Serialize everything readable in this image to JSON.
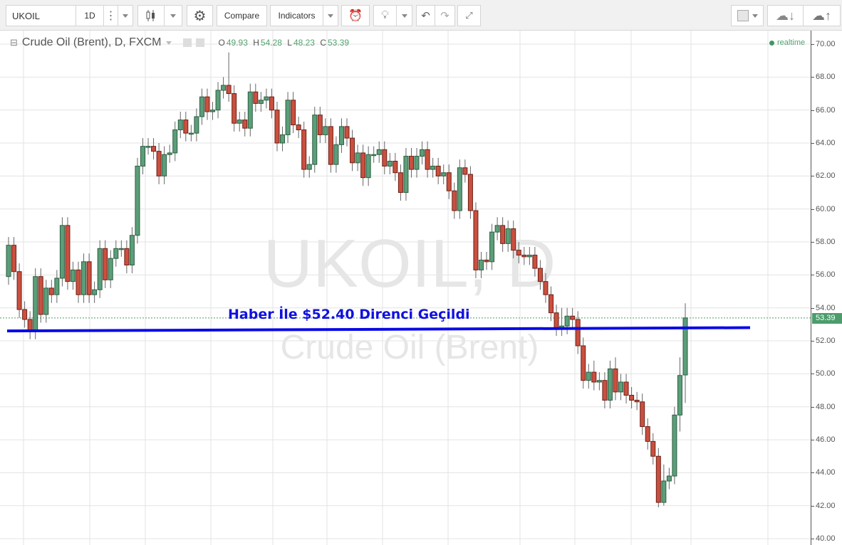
{
  "toolbar": {
    "symbol": "UKOIL",
    "interval": "1D",
    "compare_label": "Compare",
    "indicators_label": "Indicators",
    "icons": [
      "candlestick-icon",
      "gear-icon",
      "alarm-add-icon",
      "lightbulb-icon",
      "undo-icon",
      "redo-icon",
      "fullscreen-icon",
      "color-square-icon",
      "cloud-download-icon",
      "cloud-upload-icon"
    ]
  },
  "legend": {
    "title": "Crude Oil (Brent), D, FXCM",
    "o_label": "O",
    "o": "49.93",
    "h_label": "H",
    "h": "54.28",
    "l_label": "L",
    "l": "48.23",
    "c_label": "C",
    "c": "53.39"
  },
  "status": {
    "realtime": "realtime"
  },
  "watermark": {
    "line1": "UKOIL, D",
    "line2": "Crude Oil (Brent)"
  },
  "annotation": {
    "text": "Haber İle $52.40 Direnci Geçildi",
    "color": "#1010e0",
    "line_level_start": 52.6,
    "line_level_end": 52.8
  },
  "colors": {
    "up": "#5b9e7a",
    "down": "#c9503f",
    "last_price": "#4c9c6c"
  },
  "chart_data": {
    "type": "candlestick",
    "symbol": "UKOIL",
    "interval": "D",
    "ylim": [
      40,
      70.6
    ],
    "yticks": [
      "70.00",
      "68.00",
      "66.00",
      "64.00",
      "62.00",
      "60.00",
      "58.00",
      "56.00",
      "54.00",
      "52.00",
      "50.00",
      "48.00",
      "46.00",
      "44.00",
      "42.00",
      "40.00"
    ],
    "grid": true,
    "last_price": "53.39",
    "open": [
      55.9,
      57.8,
      56.2,
      53.9,
      53.3,
      52.6,
      55.9,
      53.6,
      55.2,
      54.8,
      55.8,
      59.0,
      55.6,
      56.3,
      54.8,
      56.8,
      54.8,
      55.1,
      57.6,
      55.7,
      57.0,
      57.6,
      57.6,
      56.6,
      58.4,
      62.6,
      63.8,
      63.8,
      63.5,
      62.0,
      63.3,
      63.4,
      64.8,
      65.4,
      64.6,
      64.6,
      65.6,
      66.8,
      65.9,
      66.0,
      67.2,
      67.5,
      67.0,
      65.2,
      65.4,
      64.9,
      67.1,
      66.4,
      66.6,
      66.8,
      66.0,
      64.0,
      64.5,
      66.6,
      65.1,
      64.8,
      62.4,
      62.7,
      65.7,
      64.5,
      65.0,
      62.7,
      63.9,
      65.0,
      64.3,
      62.8,
      63.4,
      61.9,
      63.3,
      63.3,
      63.6,
      62.6,
      62.9,
      62.2,
      61.0,
      63.2,
      62.4,
      63.2,
      63.6,
      62.4,
      62.6,
      62.0,
      62.2,
      61.1,
      59.9,
      62.5,
      62.1,
      59.9,
      56.3,
      56.9,
      56.8,
      58.6,
      59.0,
      57.9,
      58.8,
      57.5,
      57.2,
      57.1,
      57.2,
      56.4,
      55.6,
      54.8,
      53.7,
      52.8,
      52.9,
      53.5,
      53.3,
      51.7,
      49.6,
      50.1,
      49.5,
      49.6,
      48.4,
      50.3,
      48.9,
      49.5,
      48.7,
      48.4,
      48.3,
      46.8,
      45.9,
      45.0,
      42.2,
      43.5,
      43.8,
      47.5,
      49.93
    ],
    "high": [
      58.3,
      58.3,
      56.7,
      54.4,
      53.8,
      56.4,
      56.4,
      55.7,
      55.7,
      56.3,
      59.5,
      59.5,
      56.8,
      56.8,
      57.3,
      57.3,
      55.6,
      58.1,
      58.1,
      57.5,
      58.1,
      58.1,
      58.1,
      58.9,
      63.1,
      64.3,
      64.3,
      64.3,
      64.0,
      63.8,
      63.9,
      65.3,
      65.9,
      65.9,
      65.1,
      66.1,
      67.3,
      67.3,
      66.5,
      67.7,
      68.0,
      69.5,
      67.5,
      65.9,
      65.9,
      67.6,
      67.6,
      67.1,
      67.3,
      67.3,
      66.5,
      65.0,
      67.1,
      67.1,
      65.6,
      65.3,
      63.2,
      66.2,
      66.2,
      65.5,
      65.5,
      64.4,
      65.5,
      65.5,
      64.8,
      63.9,
      63.9,
      63.8,
      63.8,
      64.1,
      64.1,
      63.4,
      63.4,
      62.7,
      63.7,
      63.7,
      63.7,
      64.1,
      64.1,
      63.1,
      63.1,
      62.7,
      62.7,
      61.6,
      63.0,
      63.0,
      62.6,
      60.4,
      57.4,
      57.4,
      59.1,
      59.5,
      59.5,
      59.3,
      59.3,
      58.0,
      57.7,
      57.7,
      57.7,
      56.9,
      56.1,
      55.3,
      54.2,
      54.0,
      54.0,
      54.0,
      53.8,
      52.2,
      50.6,
      50.8,
      50.1,
      50.1,
      50.8,
      51.0,
      50.0,
      50.0,
      49.2,
      48.9,
      48.8,
      47.3,
      46.4,
      45.5,
      44.5,
      44.3,
      48.0,
      51.0,
      54.28
    ],
    "low": [
      55.4,
      55.7,
      53.4,
      52.8,
      52.1,
      52.1,
      53.1,
      53.1,
      54.3,
      54.3,
      55.3,
      55.1,
      55.1,
      54.3,
      54.3,
      54.3,
      54.3,
      54.6,
      55.2,
      55.2,
      56.5,
      57.1,
      56.1,
      56.1,
      57.9,
      62.1,
      63.3,
      63.0,
      61.5,
      61.5,
      62.8,
      62.9,
      64.3,
      64.1,
      64.1,
      64.1,
      65.1,
      65.4,
      65.4,
      65.5,
      66.7,
      66.5,
      64.7,
      64.7,
      64.4,
      64.4,
      65.9,
      65.9,
      66.1,
      65.5,
      63.5,
      63.5,
      64.0,
      64.6,
      64.3,
      61.9,
      61.9,
      62.2,
      64.0,
      64.0,
      62.2,
      62.2,
      63.4,
      63.8,
      62.3,
      62.3,
      61.4,
      61.4,
      62.8,
      62.8,
      62.1,
      62.1,
      61.7,
      60.5,
      60.5,
      61.9,
      61.9,
      62.7,
      61.9,
      61.9,
      61.5,
      61.5,
      60.6,
      59.4,
      59.4,
      61.6,
      59.4,
      55.8,
      55.8,
      56.3,
      56.3,
      58.1,
      57.4,
      57.4,
      57.0,
      56.7,
      56.6,
      56.6,
      55.9,
      55.1,
      54.3,
      53.2,
      52.3,
      52.3,
      52.4,
      52.8,
      51.2,
      49.1,
      49.1,
      49.0,
      49.0,
      47.9,
      47.9,
      48.4,
      48.4,
      48.2,
      47.9,
      47.8,
      46.3,
      45.4,
      44.5,
      41.9,
      42.0,
      43.0,
      43.3,
      46.5,
      48.23
    ],
    "close": [
      57.8,
      56.2,
      53.9,
      53.3,
      52.6,
      55.9,
      53.6,
      55.2,
      54.8,
      55.8,
      59.0,
      55.6,
      56.3,
      54.8,
      56.8,
      54.8,
      55.1,
      57.6,
      55.7,
      57.0,
      57.6,
      57.6,
      56.6,
      58.4,
      62.6,
      63.8,
      63.8,
      63.5,
      62.0,
      63.3,
      63.4,
      64.8,
      65.4,
      64.6,
      64.6,
      65.6,
      66.8,
      65.9,
      66.0,
      67.2,
      67.5,
      67.0,
      65.2,
      65.4,
      64.9,
      67.1,
      66.4,
      66.6,
      66.8,
      66.0,
      64.0,
      64.5,
      66.6,
      65.1,
      64.8,
      62.4,
      62.7,
      65.7,
      64.5,
      65.0,
      62.7,
      63.9,
      65.0,
      64.3,
      62.8,
      63.4,
      61.9,
      63.3,
      63.3,
      63.6,
      62.6,
      62.9,
      62.2,
      61.0,
      63.2,
      62.4,
      63.2,
      63.6,
      62.4,
      62.6,
      62.0,
      62.2,
      61.1,
      59.9,
      62.5,
      62.1,
      59.9,
      56.3,
      56.9,
      56.8,
      58.6,
      59.0,
      57.9,
      58.8,
      57.5,
      57.2,
      57.1,
      57.2,
      56.4,
      55.6,
      54.8,
      53.7,
      52.8,
      52.9,
      53.5,
      53.3,
      51.7,
      49.6,
      50.1,
      49.5,
      49.6,
      48.4,
      50.3,
      48.9,
      49.5,
      48.7,
      48.4,
      48.3,
      46.8,
      45.9,
      45.0,
      42.2,
      43.5,
      43.8,
      47.5,
      49.9,
      53.39
    ]
  }
}
